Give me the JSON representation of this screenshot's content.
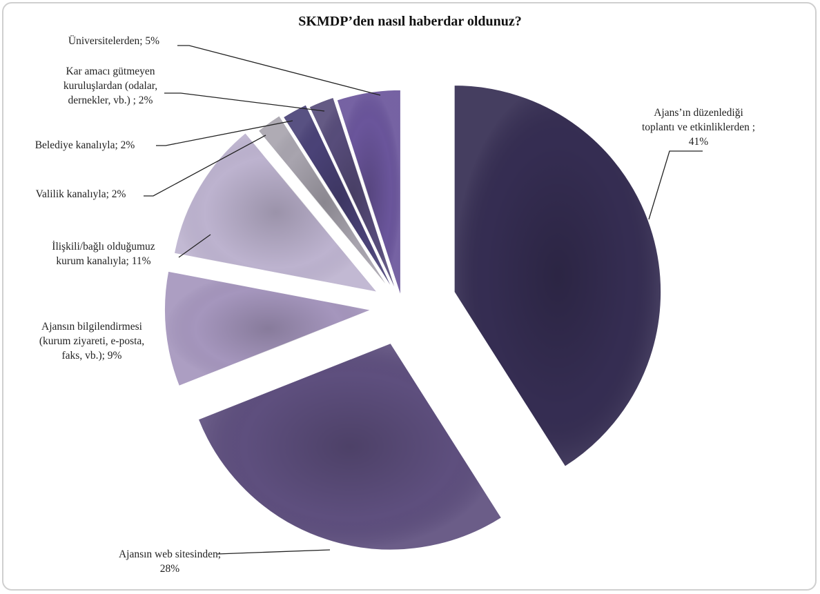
{
  "chart_data": {
    "type": "pie",
    "title": "SKMDP’den  nasıl haberdar oldunuz?",
    "slices": [
      {
        "label_lines": [
          "Ajans’ın düzenlediği",
          "toplantı ve etkinliklerden ;",
          "41%"
        ],
        "value": 41,
        "color": "#352d52"
      },
      {
        "label_lines": [
          "Ajansın web sitesinden;",
          "28%"
        ],
        "value": 28,
        "color": "#5e4f7e"
      },
      {
        "label_lines": [
          "Ajansın bilgilendirmesi",
          "(kurum ziyareti, e-posta,",
          "faks, vb.);  9%"
        ],
        "value": 9,
        "color": "#a596bd"
      },
      {
        "label_lines": [
          "İlişkili/bağlı olduğumuz",
          "kurum kanalıyla; 11%"
        ],
        "value": 11,
        "color": "#bdb3cf"
      },
      {
        "label_lines": [
          "Valilik kanalıyla; 2%"
        ],
        "value": 2,
        "color": "#a8a4ae"
      },
      {
        "label_lines": [
          "Belediye kanalıyla; 2%"
        ],
        "value": 2,
        "color": "#4a4277"
      },
      {
        "label_lines": [
          "Kar amacı gütmeyen",
          "kuruluşlardan (odalar,",
          "dernekler, vb.) ; 2%"
        ],
        "value": 2,
        "color": "#574c7a"
      },
      {
        "label_lines": [
          "Üniversitelerden; 5%"
        ],
        "value": 5,
        "color": "#6a559b"
      }
    ]
  }
}
